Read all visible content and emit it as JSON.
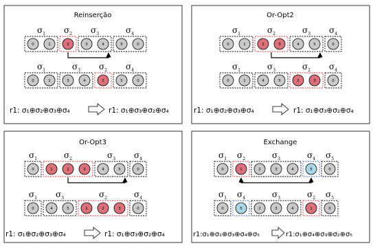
{
  "colors": {
    "node_default": "#c9c9c9",
    "node_highlight": "#d9707a",
    "node_blue": "#a9d6e5",
    "red_box": "#e0303a",
    "blue_box": "#4060c0",
    "arrow": "#000000"
  },
  "panels": [
    {
      "title": "Reinserção",
      "top": {
        "groups": [
          {
            "sigma": "σ",
            "sub": "1",
            "nodes": [
              {
                "label": "0",
                "color": "default"
              },
              {
                "label": "1",
                "color": "default"
              }
            ],
            "box": "black"
          },
          {
            "sigma": "σ",
            "sub": "2",
            "nodes": [
              {
                "label": "2",
                "color": "highlight"
              }
            ],
            "box": "red"
          },
          {
            "sigma": "σ",
            "sub": "3",
            "nodes": [
              {
                "label": "3",
                "color": "default"
              },
              {
                "label": "4",
                "color": "default"
              }
            ],
            "box": "black"
          },
          {
            "sigma": "σ",
            "sub": "4",
            "nodes": [
              {
                "label": "5",
                "color": "default"
              },
              {
                "label": "0",
                "color": "default"
              }
            ],
            "box": "black"
          }
        ]
      },
      "bottom": {
        "groups": [
          {
            "sigma": "σ",
            "sub": "1",
            "nodes": [
              {
                "label": "0",
                "color": "default"
              },
              {
                "label": "1",
                "color": "default"
              }
            ],
            "box": "black"
          },
          {
            "sigma": "σ",
            "sub": "3",
            "nodes": [
              {
                "label": "3",
                "color": "default"
              },
              {
                "label": "4",
                "color": "default"
              }
            ],
            "box": "black"
          },
          {
            "sigma": "σ",
            "sub": "2",
            "nodes": [
              {
                "label": "2",
                "color": "highlight"
              }
            ],
            "box": "red"
          },
          {
            "sigma": "σ",
            "sub": "4",
            "nodes": [
              {
                "label": "5",
                "color": "default"
              },
              {
                "label": "0",
                "color": "default"
              }
            ],
            "box": "black"
          }
        ]
      },
      "arrow": "top-g1-to-g3",
      "formula_left": "r1:  σ₁⊕σ₂⊕σ₃⊕σ₄",
      "formula_right": "r1:  σ₁⊕σ₃⊕σ₂⊕σ₄"
    },
    {
      "title": "Or-Opt2",
      "top": {
        "groups": [
          {
            "sigma": "σ",
            "sub": "1",
            "nodes": [
              {
                "label": "0",
                "color": "default"
              },
              {
                "label": "1",
                "color": "default"
              }
            ],
            "box": "black"
          },
          {
            "sigma": "σ",
            "sub": "2",
            "nodes": [
              {
                "label": "2",
                "color": "highlight"
              },
              {
                "label": "3",
                "color": "highlight"
              }
            ],
            "box": "red"
          },
          {
            "sigma": "σ",
            "sub": "3",
            "nodes": [
              {
                "label": "4",
                "color": "default"
              },
              {
                "label": "5",
                "color": "default"
              }
            ],
            "box": "black"
          },
          {
            "sigma": "σ",
            "sub": "4",
            "nodes": [
              {
                "label": "0",
                "color": "default"
              }
            ],
            "box": "black"
          }
        ]
      },
      "bottom": {
        "groups": [
          {
            "sigma": "σ",
            "sub": "1",
            "nodes": [
              {
                "label": "0",
                "color": "default"
              },
              {
                "label": "1",
                "color": "default"
              }
            ],
            "box": "black"
          },
          {
            "sigma": "σ",
            "sub": "3",
            "nodes": [
              {
                "label": "4",
                "color": "default"
              },
              {
                "label": "5",
                "color": "default"
              }
            ],
            "box": "black"
          },
          {
            "sigma": "σ",
            "sub": "2",
            "nodes": [
              {
                "label": "2",
                "color": "highlight"
              },
              {
                "label": "3",
                "color": "highlight"
              }
            ],
            "box": "red"
          },
          {
            "sigma": "σ",
            "sub": "4",
            "nodes": [
              {
                "label": "0",
                "color": "default"
              }
            ],
            "box": "black"
          }
        ]
      },
      "arrow": "top-g1-to-g3",
      "formula_left": "r1: σ₁⊕σ₂⊕σ₃⊕σ₄",
      "formula_right": "r1:  σ₁⊕σ₃⊕σ₂⊕σ₄"
    },
    {
      "title": "Or-Opt3",
      "top": {
        "groups": [
          {
            "sigma": "σ",
            "sub": "1",
            "nodes": [
              {
                "label": "0",
                "color": "default"
              }
            ],
            "box": "black"
          },
          {
            "sigma": "σ",
            "sub": "2",
            "nodes": [
              {
                "label": "1",
                "color": "highlight"
              },
              {
                "label": "2",
                "color": "highlight"
              },
              {
                "label": "3",
                "color": "highlight"
              }
            ],
            "box": "red"
          },
          {
            "sigma": "σ",
            "sub": "3",
            "nodes": [
              {
                "label": "4",
                "color": "default"
              },
              {
                "label": "5",
                "color": "default"
              }
            ],
            "box": "black"
          },
          {
            "sigma": "σ",
            "sub": "4",
            "nodes": [
              {
                "label": "0",
                "color": "default"
              }
            ],
            "box": "black"
          }
        ]
      },
      "bottom": {
        "groups": [
          {
            "sigma": "σ",
            "sub": "1",
            "nodes": [
              {
                "label": "0",
                "color": "default"
              }
            ],
            "box": "black"
          },
          {
            "sigma": "σ",
            "sub": "3",
            "nodes": [
              {
                "label": "4",
                "color": "default"
              },
              {
                "label": "5",
                "color": "default"
              }
            ],
            "box": "black"
          },
          {
            "sigma": "σ",
            "sub": "2",
            "nodes": [
              {
                "label": "1",
                "color": "highlight"
              },
              {
                "label": "2",
                "color": "highlight"
              },
              {
                "label": "3",
                "color": "highlight"
              }
            ],
            "box": "red"
          },
          {
            "sigma": "σ",
            "sub": "4",
            "nodes": [
              {
                "label": "0",
                "color": "default"
              }
            ],
            "box": "black"
          }
        ]
      },
      "arrow": "top-g1-to-g3",
      "formula_left": "r1:  σ₁⊕σ₂⊕σ₃⊕σ₄",
      "formula_right": "r1:  σ₁⊕σ₃⊕σ₂⊕σ₄"
    },
    {
      "title": "Exchange",
      "top": {
        "groups": [
          {
            "sigma": "σ",
            "sub": "1",
            "nodes": [
              {
                "label": "0",
                "color": "default"
              }
            ],
            "box": "black"
          },
          {
            "sigma": "σ",
            "sub": "2",
            "nodes": [
              {
                "label": "1",
                "color": "highlight"
              }
            ],
            "box": "red"
          },
          {
            "sigma": "σ",
            "sub": "3",
            "nodes": [
              {
                "label": "2",
                "color": "default"
              },
              {
                "label": "3",
                "color": "default"
              },
              {
                "label": "4",
                "color": "default"
              }
            ],
            "box": "black"
          },
          {
            "sigma": "σ",
            "sub": "4",
            "nodes": [
              {
                "label": "5",
                "color": "blue"
              }
            ],
            "box": "blue"
          },
          {
            "sigma": "σ",
            "sub": "5",
            "nodes": [
              {
                "label": "0",
                "color": "default"
              }
            ],
            "box": "black"
          }
        ]
      },
      "bottom": {
        "groups": [
          {
            "sigma": "σ",
            "sub": "1",
            "nodes": [
              {
                "label": "0",
                "color": "default"
              }
            ],
            "box": "black"
          },
          {
            "sigma": "σ",
            "sub": "4",
            "nodes": [
              {
                "label": "5",
                "color": "blue"
              }
            ],
            "box": "blue"
          },
          {
            "sigma": "σ",
            "sub": "3",
            "nodes": [
              {
                "label": "2",
                "color": "default"
              },
              {
                "label": "3",
                "color": "default"
              },
              {
                "label": "4",
                "color": "default"
              }
            ],
            "box": "black"
          },
          {
            "sigma": "σ",
            "sub": "2",
            "nodes": [
              {
                "label": "1",
                "color": "highlight"
              }
            ],
            "box": "red"
          },
          {
            "sigma": "σ",
            "sub": "5",
            "nodes": [
              {
                "label": "0",
                "color": "default"
              }
            ],
            "box": "black"
          }
        ]
      },
      "arrow": "top-g1-g3-double",
      "formula_left": "r1:σ₁⊕σ₂⊕σ₃⊕σ₄⊕σ₅",
      "formula_right": "r1:σ₁⊕σ₄⊕σ₃⊕σ₂⊕σ₅"
    }
  ]
}
